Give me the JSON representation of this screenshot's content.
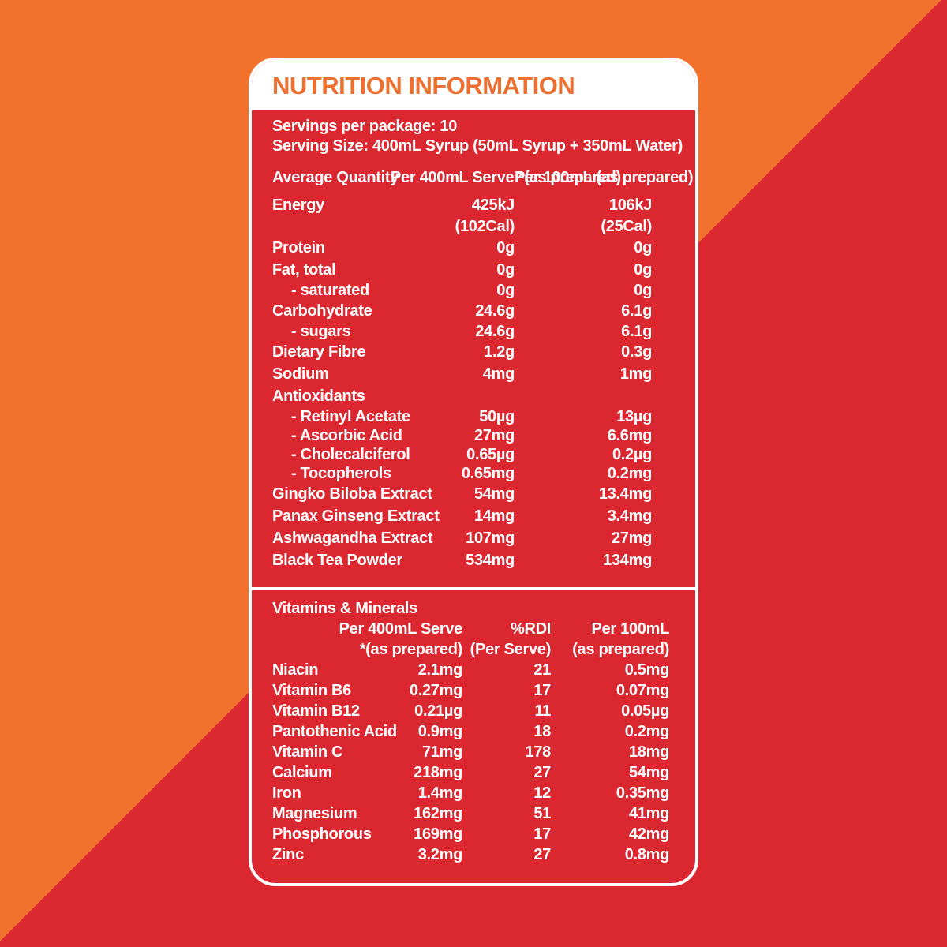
{
  "colors": {
    "background_orange": "#F1712D",
    "background_red": "#DA2730",
    "title_orange": "#ED7030",
    "text_white": "#FFFFFF"
  },
  "panel": {
    "title": "NUTRITION INFORMATION",
    "servings_per_package": "Servings per package: 10",
    "serving_size": "Serving Size: 400mL Syrup (50mL Syrup + 350mL Water)",
    "main_table": {
      "headers": {
        "col1": "Average\nQuantity",
        "col2": "Per 400mL Serve\n*(as prepared)",
        "col3": "Per 100mL\n(as prepared)"
      },
      "rows": [
        {
          "label": "Energy",
          "per_serve": "425kJ",
          "per_100": "106kJ",
          "indent": false
        },
        {
          "label": "",
          "per_serve": "(102Cal)",
          "per_100": "(25Cal)",
          "indent": false
        },
        {
          "label": "Protein",
          "per_serve": "0g",
          "per_100": "0g",
          "indent": false
        },
        {
          "label": "Fat, total",
          "per_serve": "0g",
          "per_100": "0g",
          "indent": false
        },
        {
          "label": "- saturated",
          "per_serve": "0g",
          "per_100": "0g",
          "indent": true
        },
        {
          "label": "Carbohydrate",
          "per_serve": "24.6g",
          "per_100": "6.1g",
          "indent": false
        },
        {
          "label": "- sugars",
          "per_serve": "24.6g",
          "per_100": "6.1g",
          "indent": true
        },
        {
          "label": "Dietary Fibre",
          "per_serve": "1.2g",
          "per_100": "0.3g",
          "indent": false
        },
        {
          "label": "Sodium",
          "per_serve": "4mg",
          "per_100": "1mg",
          "indent": false
        },
        {
          "label": "Antioxidants",
          "per_serve": "",
          "per_100": "",
          "indent": false
        },
        {
          "label": "- Retinyl Acetate",
          "per_serve": "50µg",
          "per_100": "13µg",
          "indent": true
        },
        {
          "label": "- Ascorbic Acid",
          "per_serve": "27mg",
          "per_100": "6.6mg",
          "indent": true
        },
        {
          "label": "- Cholecalciferol",
          "per_serve": "0.65µg",
          "per_100": "0.2µg",
          "indent": true
        },
        {
          "label": "- Tocopherols",
          "per_serve": "0.65mg",
          "per_100": "0.2mg",
          "indent": true
        },
        {
          "label": "Gingko Biloba Extract",
          "per_serve": "54mg",
          "per_100": "13.4mg",
          "indent": false
        },
        {
          "label": "Panax Ginseng Extract",
          "per_serve": "14mg",
          "per_100": "3.4mg",
          "indent": false
        },
        {
          "label": "Ashwagandha Extract",
          "per_serve": "107mg",
          "per_100": "27mg",
          "indent": false
        },
        {
          "label": "Black Tea Powder",
          "per_serve": "534mg",
          "per_100": "134mg",
          "indent": false
        }
      ]
    },
    "vitamins": {
      "title": "Vitamins & Minerals",
      "headers": {
        "per_serve": "Per 400mL Serve\n*(as prepared)",
        "rdi": "%RDI\n(Per Serve)",
        "per_100": "Per 100mL\n(as prepared)"
      },
      "rows": [
        {
          "label": "Niacin",
          "per_serve": "2.1mg",
          "rdi": "21",
          "per_100": "0.5mg"
        },
        {
          "label": "Vitamin B6",
          "per_serve": "0.27mg",
          "rdi": "17",
          "per_100": "0.07mg"
        },
        {
          "label": "Vitamin B12",
          "per_serve": "0.21µg",
          "rdi": "11",
          "per_100": "0.05µg"
        },
        {
          "label": "Pantothenic Acid",
          "per_serve": "0.9mg",
          "rdi": "18",
          "per_100": "0.2mg"
        },
        {
          "label": "Vitamin C",
          "per_serve": "71mg",
          "rdi": "178",
          "per_100": "18mg"
        },
        {
          "label": "Calcium",
          "per_serve": "218mg",
          "rdi": "27",
          "per_100": "54mg"
        },
        {
          "label": "Iron",
          "per_serve": "1.4mg",
          "rdi": "12",
          "per_100": "0.35mg"
        },
        {
          "label": "Magnesium",
          "per_serve": "162mg",
          "rdi": "51",
          "per_100": "41mg"
        },
        {
          "label": "Phosphorous",
          "per_serve": "169mg",
          "rdi": "17",
          "per_100": "42mg"
        },
        {
          "label": "Zinc",
          "per_serve": "3.2mg",
          "rdi": "27",
          "per_100": "0.8mg"
        }
      ]
    }
  }
}
